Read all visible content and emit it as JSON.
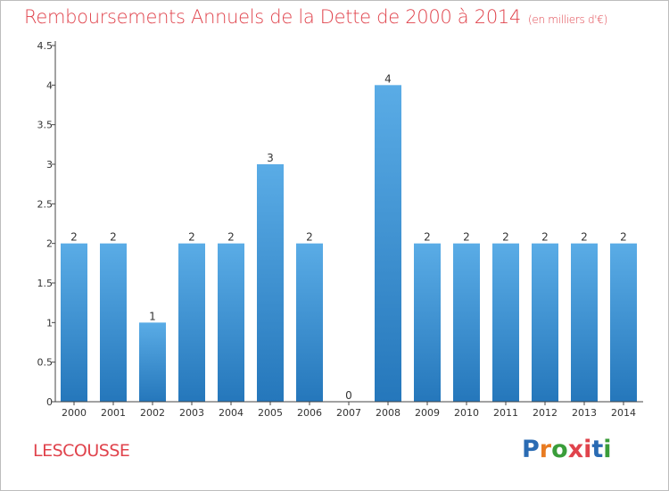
{
  "title": "Remboursements Annuels de la Dette de 2000 à 2014",
  "subtitle": "(en milliers d'€)",
  "place": "LESCOUSSE",
  "logo": {
    "letters": [
      "P",
      "r",
      "o",
      "x",
      "i",
      "t",
      "i"
    ],
    "colors": [
      "#2a6bb3",
      "#e87b22",
      "#3a9d3a",
      "#e0434c",
      "#e0434c",
      "#2a6bb3",
      "#3a9d3a"
    ]
  },
  "colors": {
    "bar_top": "#5aace6",
    "bar_bottom": "#2577bb",
    "axis": "#444444",
    "title": "#e0434c"
  },
  "chart_data": {
    "type": "bar",
    "categories": [
      "2000",
      "2001",
      "2002",
      "2003",
      "2004",
      "2005",
      "2006",
      "2007",
      "2008",
      "2009",
      "2010",
      "2011",
      "2012",
      "2013",
      "2014"
    ],
    "values": [
      2,
      2,
      1,
      2,
      2,
      3,
      2,
      0,
      4,
      2,
      2,
      2,
      2,
      2,
      2
    ],
    "data_labels": [
      "2",
      "2",
      "1",
      "2",
      "2",
      "3",
      "2",
      "0",
      "4",
      "2",
      "2",
      "2",
      "2",
      "2",
      "2"
    ],
    "yticks": [
      0,
      0.5,
      1,
      1.5,
      2,
      2.5,
      3,
      3.5,
      4,
      4.5
    ],
    "ytick_labels": [
      "0",
      "0.5",
      "1",
      "1.5",
      "2",
      "2.5",
      "3",
      "3.5",
      "4",
      "4.5"
    ],
    "ylim": [
      0,
      4.5
    ],
    "grid": false
  }
}
